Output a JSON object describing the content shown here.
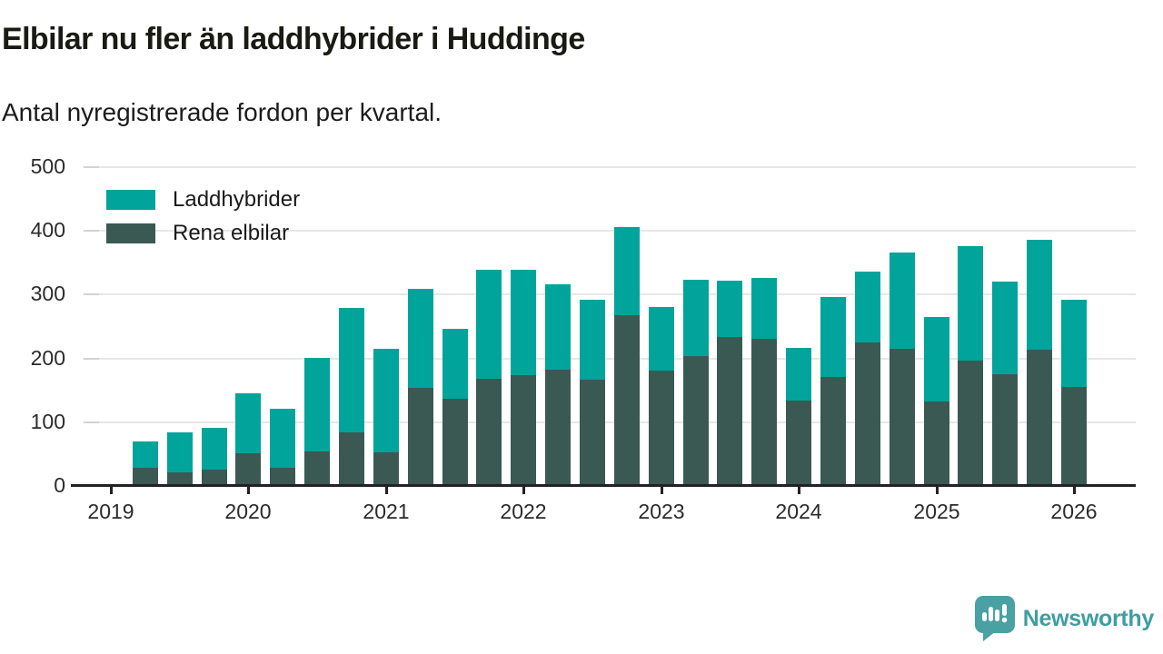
{
  "header": {
    "title": "Elbilar nu fler än laddhybrider i Huddinge",
    "subtitle": "Antal nyregistrerade fordon per kvartal."
  },
  "chart_data": {
    "type": "bar",
    "stacked": true,
    "title": "Elbilar nu fler än laddhybrider i Huddinge",
    "subtitle": "Antal nyregistrerade fordon per kvartal.",
    "categories": [
      "2019 Q2",
      "2019 Q3",
      "2019 Q4",
      "2020 Q1",
      "2020 Q2",
      "2020 Q3",
      "2020 Q4",
      "2021 Q1",
      "2021 Q2",
      "2021 Q3",
      "2021 Q4",
      "2022 Q1",
      "2022 Q2",
      "2022 Q3",
      "2022 Q4",
      "2023 Q1",
      "2023 Q2",
      "2023 Q3",
      "2023 Q4",
      "2024 Q1",
      "2024 Q2",
      "2024 Q3",
      "2024 Q4",
      "2025 Q1",
      "2025 Q2",
      "2025 Q3",
      "2025 Q4",
      "2026 Q1"
    ],
    "series": [
      {
        "name": "Rena elbilar",
        "color": "#3a5953",
        "values": [
          28,
          21,
          26,
          51,
          28,
          54,
          84,
          53,
          154,
          137,
          168,
          174,
          183,
          167,
          268,
          181,
          203,
          234,
          231,
          134,
          171,
          225,
          215,
          133,
          197,
          175,
          214,
          155
        ]
      },
      {
        "name": "Laddhybrider",
        "color": "#00a49b",
        "values": [
          42,
          62,
          65,
          94,
          92,
          147,
          195,
          162,
          155,
          110,
          171,
          165,
          134,
          126,
          138,
          100,
          120,
          88,
          95,
          83,
          126,
          111,
          151,
          133,
          179,
          145,
          173,
          137
        ]
      }
    ],
    "totals": [
      70,
      83,
      91,
      145,
      120,
      201,
      279,
      215,
      309,
      247,
      339,
      339,
      317,
      293,
      406,
      281,
      323,
      322,
      326,
      217,
      297,
      336,
      366,
      266,
      376,
      320,
      387,
      292
    ],
    "legend": [
      {
        "label": "Laddhybrider",
        "color": "#00a49b"
      },
      {
        "label": "Rena elbilar",
        "color": "#3a5953"
      }
    ],
    "y_ticks": [
      0,
      100,
      200,
      300,
      400,
      500
    ],
    "x_tick_labels": [
      "2019",
      "2020",
      "2021",
      "2022",
      "2023",
      "2024",
      "2025",
      "2026"
    ],
    "ylim": [
      0,
      500
    ],
    "grid": "horizontal",
    "legend_position": "top-left",
    "colors": {
      "axis": "#222222",
      "gridline": "#e7e7e7",
      "text": "#1a1a1a"
    }
  },
  "footer": {
    "brand": "Newsworthy",
    "brand_color": "#3e9ea1"
  }
}
